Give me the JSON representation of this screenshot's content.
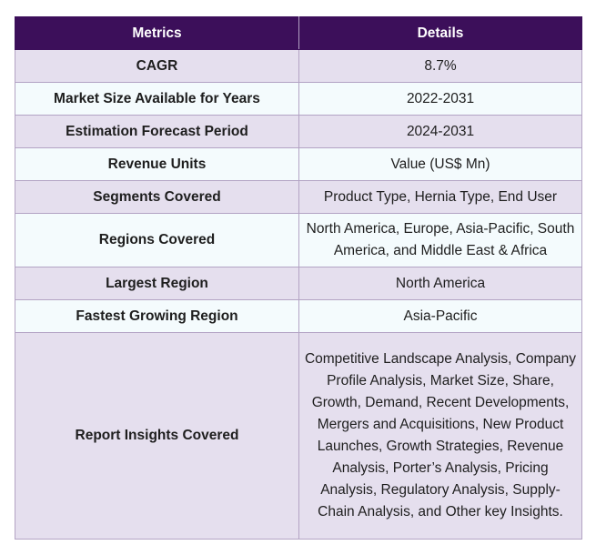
{
  "table": {
    "headers": [
      "Metrics",
      "Details"
    ],
    "rows": [
      {
        "metric": "CAGR",
        "details": "8.7%"
      },
      {
        "metric": "Market Size Available for Years",
        "details": "2022-2031"
      },
      {
        "metric": "Estimation Forecast Period",
        "details": "2024-2031"
      },
      {
        "metric": "Revenue Units",
        "details": "Value (US$ Mn)"
      },
      {
        "metric": "Segments Covered",
        "details": "Product Type, Hernia Type, End User"
      },
      {
        "metric": "Regions Covered",
        "details": "North America, Europe, Asia-Pacific, South America, and Middle East & Africa"
      },
      {
        "metric": "Largest Region",
        "details": "North America"
      },
      {
        "metric": "Fastest Growing Region",
        "details": "Asia-Pacific"
      },
      {
        "metric": "Report Insights Covered",
        "details": "Competitive Landscape Analysis, Company Profile Analysis, Market Size, Share, Growth, Demand, Recent Developments, Mergers and Acquisitions, New Product Launches, Growth Strategies, Revenue Analysis, Porter’s Analysis, Pricing Analysis, Regulatory Analysis, Supply-Chain Analysis, and Other key Insights."
      }
    ]
  },
  "colors": {
    "header_bg": "#3c0f5a",
    "row_odd_bg": "#e5dfee",
    "row_even_bg": "#f4fbfd",
    "border": "#b3a3c4"
  }
}
